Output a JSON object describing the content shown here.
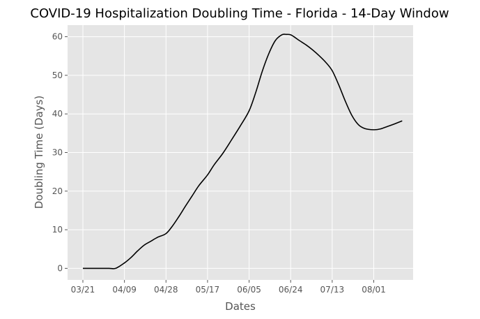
{
  "chart_data": {
    "type": "line",
    "title": "COVID-19 Hospitalization Doubling Time - Florida - 14-Day Window",
    "xlabel": "Dates",
    "ylabel": "Doubling Time (Days)",
    "x_ticks": [
      "03/21",
      "04/09",
      "04/28",
      "05/17",
      "06/05",
      "06/24",
      "07/13",
      "08/01"
    ],
    "y_ticks": [
      0,
      10,
      20,
      30,
      40,
      50,
      60
    ],
    "ylim": [
      -3,
      63
    ],
    "xlim": [
      "2020-03-14",
      "2020-08-19"
    ],
    "grid": true,
    "colors": {
      "background": "#e5e5e5",
      "grid": "#ffffff",
      "line": "#000000"
    },
    "series": [
      {
        "x": [
          "2020-03-21",
          "2020-03-25",
          "2020-03-29",
          "2020-04-02",
          "2020-04-05",
          "2020-04-09",
          "2020-04-12",
          "2020-04-15",
          "2020-04-18",
          "2020-04-21",
          "2020-04-24",
          "2020-04-28",
          "2020-05-01",
          "2020-05-04",
          "2020-05-07",
          "2020-05-10",
          "2020-05-13",
          "2020-05-17",
          "2020-05-20",
          "2020-05-24",
          "2020-05-28",
          "2020-06-01",
          "2020-06-05",
          "2020-06-08",
          "2020-06-11",
          "2020-06-14",
          "2020-06-17",
          "2020-06-20",
          "2020-06-22",
          "2020-06-24",
          "2020-06-26",
          "2020-06-28",
          "2020-07-01",
          "2020-07-04",
          "2020-07-07",
          "2020-07-10",
          "2020-07-13",
          "2020-07-16",
          "2020-07-19",
          "2020-07-22",
          "2020-07-25",
          "2020-07-28",
          "2020-08-01",
          "2020-08-04",
          "2020-08-07",
          "2020-08-10",
          "2020-08-14"
        ],
        "values": [
          0,
          0,
          0,
          0,
          0,
          1.4,
          2.8,
          4.5,
          6.0,
          7.0,
          8.0,
          9.0,
          11.0,
          13.5,
          16.2,
          18.8,
          21.4,
          24.2,
          26.8,
          29.8,
          33.3,
          36.9,
          40.8,
          45.5,
          51.0,
          55.6,
          59.0,
          60.5,
          60.6,
          60.5,
          59.8,
          59.0,
          57.9,
          56.6,
          55.1,
          53.4,
          51.2,
          47.5,
          43.3,
          39.6,
          37.2,
          36.2,
          35.9,
          36.1,
          36.7,
          37.3,
          38.2
        ]
      }
    ]
  }
}
